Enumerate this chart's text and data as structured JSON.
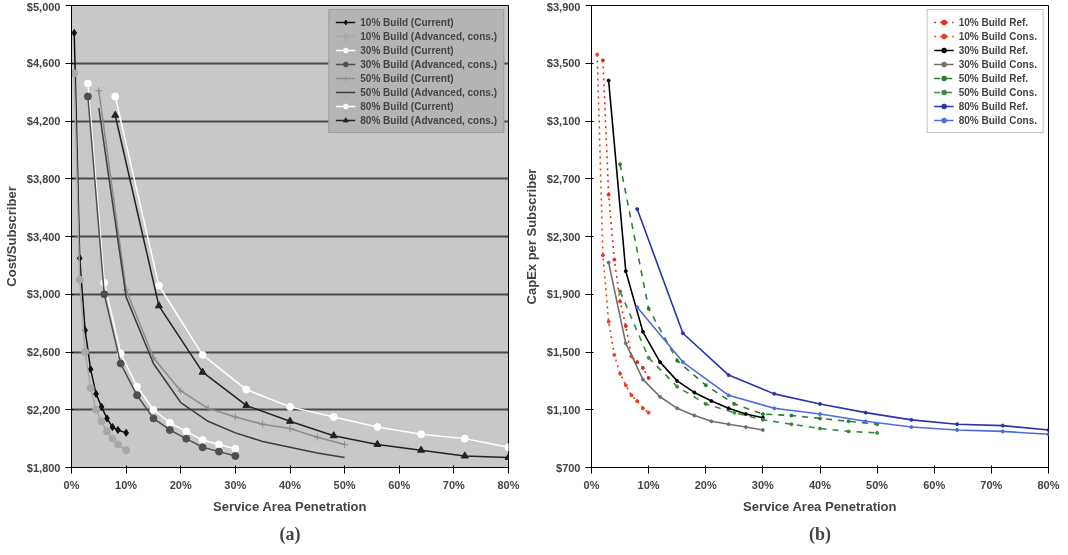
{
  "chart_data": [
    {
      "type": "line",
      "xlabel": "Service Area Penetration",
      "ylabel": "Cost/Subscriber",
      "annotations": [
        "(a)"
      ],
      "xlim": [
        0,
        80
      ],
      "ylim": [
        1800,
        5000
      ],
      "xticks": [
        {
          "value": 0,
          "label": "0%"
        },
        {
          "value": 10,
          "label": "10%"
        },
        {
          "value": 20,
          "label": "20%"
        },
        {
          "value": 30,
          "label": "30%"
        },
        {
          "value": 40,
          "label": "40%"
        },
        {
          "value": 50,
          "label": "50%"
        },
        {
          "value": 60,
          "label": "60%"
        },
        {
          "value": 70,
          "label": "70%"
        },
        {
          "value": 80,
          "label": "80%"
        }
      ],
      "yticks": [
        {
          "value": 1800,
          "label": "$1,800"
        },
        {
          "value": 2200,
          "label": "$2,200"
        },
        {
          "value": 2600,
          "label": "$2,600"
        },
        {
          "value": 3000,
          "label": "$3,000"
        },
        {
          "value": 3400,
          "label": "$3,400"
        },
        {
          "value": 3800,
          "label": "$3,800"
        },
        {
          "value": 4200,
          "label": "$4,200"
        },
        {
          "value": 4600,
          "label": "$4,600"
        },
        {
          "value": 5000,
          "label": "$5,000"
        }
      ],
      "grid": "y",
      "legend": "top right",
      "series": [
        {
          "name": "10% Build (Current)",
          "color": "#111111",
          "marker": "diamond",
          "x": [
            0.5,
            1.5,
            2.5,
            3.5,
            4.5,
            5.5,
            6.5,
            7.5,
            8.5,
            10
          ],
          "values": [
            4810,
            3250,
            2750,
            2480,
            2310,
            2220,
            2140,
            2080,
            2060,
            2040
          ]
        },
        {
          "name": "10% Build (Advanced, cons.)",
          "color": "#a8a8a8",
          "marker": "circle",
          "x": [
            0.5,
            1.5,
            2.5,
            3.5,
            4.5,
            5.5,
            6.5,
            7.5,
            8.5,
            10
          ],
          "values": [
            4530,
            3100,
            2600,
            2350,
            2200,
            2120,
            2050,
            2000,
            1960,
            1920
          ]
        },
        {
          "name": "30% Build (Current)",
          "color": "#ffffff",
          "marker": "circle",
          "x": [
            3,
            6,
            9,
            12,
            15,
            18,
            21,
            24,
            27,
            30
          ],
          "values": [
            4460,
            3080,
            2590,
            2360,
            2200,
            2110,
            2050,
            1990,
            1960,
            1930
          ]
        },
        {
          "name": "30% Build (Advanced, cons.)",
          "color": "#505050",
          "marker": "circle",
          "x": [
            3,
            6,
            9,
            12,
            15,
            18,
            21,
            24,
            27,
            30
          ],
          "values": [
            4370,
            3000,
            2520,
            2300,
            2140,
            2060,
            2000,
            1940,
            1910,
            1880
          ]
        },
        {
          "name": "50% Build (Current)",
          "color": "#8c8c8c",
          "marker": "cross",
          "x": [
            5,
            10,
            15,
            20,
            25,
            30,
            35,
            40,
            45,
            50
          ],
          "values": [
            4410,
            3030,
            2560,
            2330,
            2210,
            2150,
            2100,
            2070,
            2010,
            1960
          ]
        },
        {
          "name": "50% Build (Advanced, cons.)",
          "color": "#3c3c3c",
          "marker": "none",
          "x": [
            5,
            10,
            15,
            20,
            25,
            30,
            35,
            40,
            45,
            50
          ],
          "values": [
            4290,
            2980,
            2520,
            2250,
            2120,
            2040,
            1980,
            1940,
            1900,
            1870
          ]
        },
        {
          "name": "80% Build (Current)",
          "color": "#ffffff",
          "marker": "circle",
          "x": [
            8,
            16,
            24,
            32,
            40,
            48,
            56,
            64,
            72,
            80
          ],
          "values": [
            4370,
            3060,
            2580,
            2340,
            2220,
            2150,
            2080,
            2030,
            2000,
            1940
          ]
        },
        {
          "name": "80% Build (Advanced, cons.)",
          "color": "#222222",
          "marker": "triangle",
          "x": [
            8,
            16,
            24,
            32,
            40,
            48,
            56,
            64,
            72,
            80
          ],
          "values": [
            4240,
            2920,
            2460,
            2230,
            2120,
            2020,
            1960,
            1920,
            1880,
            1870
          ]
        }
      ]
    },
    {
      "type": "line",
      "xlabel": "Service Area Penetration",
      "ylabel": "CapEx per Subscriber",
      "annotations": [
        "(b)"
      ],
      "xlim": [
        0,
        80
      ],
      "ylim": [
        700,
        3900
      ],
      "xticks": [
        {
          "value": 0,
          "label": "0%"
        },
        {
          "value": 10,
          "label": "10%"
        },
        {
          "value": 20,
          "label": "20%"
        },
        {
          "value": 30,
          "label": "30%"
        },
        {
          "value": 40,
          "label": "40%"
        },
        {
          "value": 50,
          "label": "50%"
        },
        {
          "value": 60,
          "label": "60%"
        },
        {
          "value": 70,
          "label": "70%"
        },
        {
          "value": 80,
          "label": "80%"
        }
      ],
      "yticks": [
        {
          "value": 700,
          "label": "$700"
        },
        {
          "value": 1100,
          "label": "$1,100"
        },
        {
          "value": 1500,
          "label": "$1,500"
        },
        {
          "value": 1900,
          "label": "$1,900"
        },
        {
          "value": 2300,
          "label": "$2,300"
        },
        {
          "value": 2700,
          "label": "$2,700"
        },
        {
          "value": 3100,
          "label": "$3,100"
        },
        {
          "value": 3500,
          "label": "$3,500"
        },
        {
          "value": 3900,
          "label": "$3,900"
        }
      ],
      "legend": "top right",
      "series": [
        {
          "name": "10% Build Ref.",
          "color": "#e0301c",
          "marker": "circle",
          "line_style": "dotted",
          "x": [
            2,
            3,
            4,
            5,
            6,
            7,
            8,
            9,
            10
          ],
          "values": [
            3520,
            2590,
            2140,
            1850,
            1680,
            1470,
            1430,
            1390,
            1320
          ]
        },
        {
          "name": "10% Build Cons.",
          "color": "#e8401e",
          "marker": "circle",
          "line_style": "dotted",
          "x": [
            1,
            2,
            3,
            4,
            5,
            6,
            7,
            8,
            9,
            10
          ],
          "values": [
            3560,
            2170,
            1710,
            1480,
            1350,
            1270,
            1200,
            1160,
            1110,
            1080
          ]
        },
        {
          "name": "30% Build Ref.",
          "color": "#000000",
          "marker": "circle",
          "line_style": "solid",
          "x": [
            3,
            6,
            9,
            12,
            15,
            18,
            21,
            24,
            27,
            30
          ],
          "values": [
            3380,
            2060,
            1640,
            1430,
            1300,
            1220,
            1160,
            1110,
            1070,
            1045
          ]
        },
        {
          "name": "30% Build Cons.",
          "color": "#707070",
          "marker": "circle",
          "line_style": "solid",
          "x": [
            3,
            6,
            9,
            12,
            15,
            18,
            21,
            24,
            27,
            30
          ],
          "values": [
            2120,
            1560,
            1310,
            1190,
            1110,
            1060,
            1020,
            1000,
            980,
            960
          ]
        },
        {
          "name": "50% Build Ref.",
          "color": "#2e7d32",
          "marker": "circle",
          "line_style": "dashed",
          "x": [
            5,
            10,
            15,
            20,
            25,
            30,
            35,
            40,
            45,
            50
          ],
          "values": [
            2800,
            1800,
            1440,
            1270,
            1140,
            1070,
            1060,
            1040,
            1020,
            1000
          ]
        },
        {
          "name": "50% Build Cons.",
          "color": "#3a8a3a",
          "marker": "circle",
          "line_style": "dashed",
          "x": [
            5,
            10,
            15,
            20,
            25,
            30,
            35,
            40,
            45,
            50
          ],
          "values": [
            1920,
            1460,
            1260,
            1140,
            1080,
            1030,
            1000,
            970,
            950,
            940
          ]
        },
        {
          "name": "80% Build Ref.",
          "color": "#2a34a8",
          "marker": "circle",
          "line_style": "solid",
          "x": [
            8,
            16,
            24,
            32,
            40,
            48,
            56,
            64,
            72,
            80
          ],
          "values": [
            2490,
            1630,
            1340,
            1210,
            1140,
            1080,
            1030,
            1000,
            990,
            960
          ]
        },
        {
          "name": "80% Build Cons.",
          "color": "#4a6ee0",
          "marker": "circle",
          "line_style": "solid",
          "x": [
            8,
            16,
            24,
            32,
            40,
            48,
            56,
            64,
            72,
            80
          ],
          "values": [
            1810,
            1430,
            1200,
            1110,
            1070,
            1020,
            980,
            960,
            950,
            930
          ]
        }
      ]
    }
  ]
}
